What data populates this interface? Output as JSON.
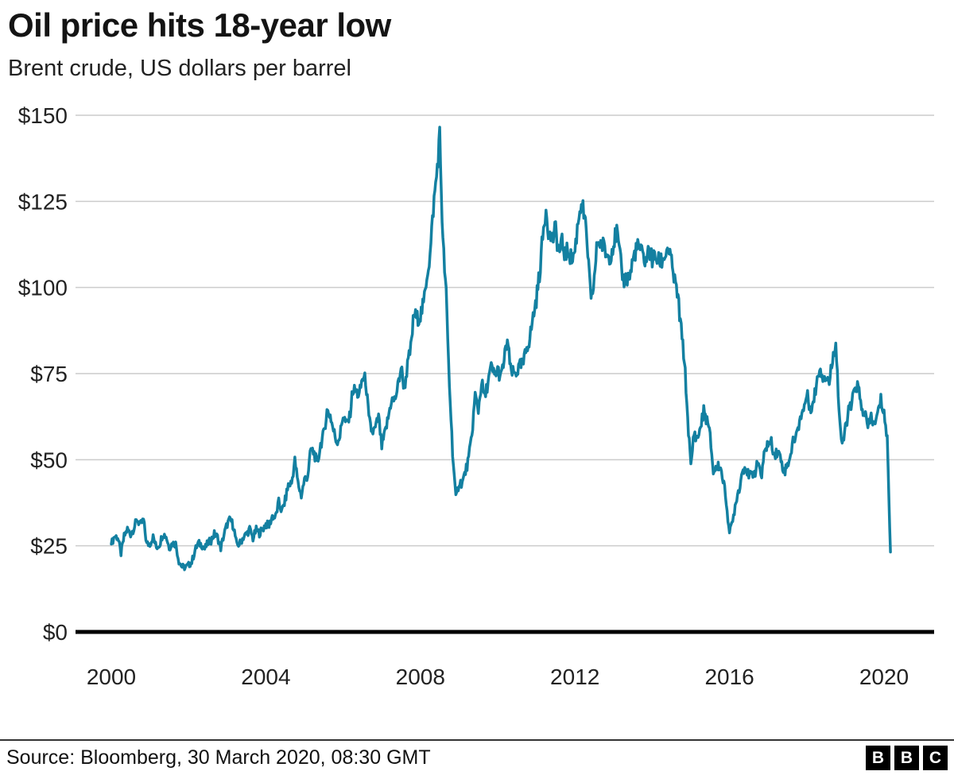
{
  "chart_data": {
    "type": "line",
    "title": "Oil price hits 18-year low",
    "subtitle": "Brent crude, US dollars per barrel",
    "line_color": "#1380A1",
    "grid": true,
    "legend_position": "none",
    "ylim": [
      0,
      150
    ],
    "xlim": [
      2000,
      2020.25
    ],
    "y_ticks": [
      {
        "value": 0,
        "label": "$0"
      },
      {
        "value": 25,
        "label": "$25"
      },
      {
        "value": 50,
        "label": "$50"
      },
      {
        "value": 75,
        "label": "$75"
      },
      {
        "value": 100,
        "label": "$100"
      },
      {
        "value": 125,
        "label": "$125"
      },
      {
        "value": 150,
        "label": "$150"
      }
    ],
    "x_ticks": [
      {
        "value": 2000,
        "label": "2000"
      },
      {
        "value": 2004,
        "label": "2004"
      },
      {
        "value": 2008,
        "label": "2008"
      },
      {
        "value": 2012,
        "label": "2012"
      },
      {
        "value": 2016,
        "label": "2016"
      },
      {
        "value": 2020,
        "label": "2020"
      }
    ],
    "series": [
      {
        "name": "Brent crude price (US dollars per barrel)",
        "x_start_year": 2000,
        "x_step": "monthly",
        "values": [
          25.5,
          27.8,
          27.5,
          22.8,
          27.7,
          29.8,
          28.4,
          30.1,
          32.7,
          31.0,
          32.5,
          25.5,
          25.6,
          27.5,
          24.5,
          25.5,
          28.5,
          27.8,
          24.5,
          25.7,
          25.6,
          20.5,
          18.9,
          18.7,
          19.4,
          20.3,
          23.7,
          25.7,
          25.4,
          24.1,
          25.8,
          26.6,
          28.4,
          27.5,
          24.3,
          28.3,
          31.3,
          32.7,
          30.5,
          25.0,
          25.8,
          27.5,
          28.4,
          29.8,
          27.1,
          29.6,
          28.7,
          29.8,
          31.3,
          30.8,
          33.6,
          33.3,
          37.6,
          35.0,
          38.2,
          42.7,
          43.2,
          49.7,
          43.1,
          39.6,
          44.2,
          45.4,
          53.1,
          51.9,
          48.6,
          54.4,
          57.5,
          64.1,
          62.9,
          58.5,
          55.2,
          56.9,
          63.1,
          60.2,
          62.1,
          70.3,
          69.8,
          68.6,
          73.7,
          73.2,
          61.7,
          57.8,
          58.9,
          62.3,
          53.7,
          57.6,
          62.1,
          67.5,
          67.2,
          71.1,
          77.0,
          70.8,
          77.2,
          82.3,
          92.4,
          91.0,
          92.0,
          95.0,
          103.7,
          109.1,
          122.8,
          132.3,
          144.0,
          113.0,
          98.1,
          71.9,
          52.5,
          38.5,
          43.4,
          43.3,
          46.5,
          50.2,
          57.3,
          68.6,
          64.4,
          72.5,
          67.7,
          72.8,
          76.7,
          74.5,
          76.2,
          73.8,
          78.8,
          84.8,
          75.9,
          74.8,
          75.6,
          77.1,
          77.8,
          82.7,
          85.3,
          91.4,
          96.5,
          104.0,
          114.6,
          123.3,
          115.0,
          114.0,
          116.8,
          110.2,
          112.8,
          109.5,
          110.8,
          107.9,
          110.7,
          119.3,
          125.5,
          119.8,
          110.3,
          95.2,
          102.6,
          113.4,
          112.9,
          111.7,
          109.1,
          109.5,
          112.9,
          116.1,
          108.5,
          102.3,
          102.6,
          102.9,
          107.9,
          111.3,
          111.6,
          109.1,
          107.8,
          110.8,
          108.1,
          108.9,
          107.5,
          107.8,
          109.5,
          111.8,
          106.8,
          101.6,
          97.1,
          87.4,
          79.0,
          62.3,
          47.8,
          58.1,
          55.9,
          59.5,
          64.1,
          61.5,
          56.6,
          46.5,
          47.6,
          48.4,
          44.3,
          38.0,
          28.5,
          32.2,
          38.2,
          41.6,
          46.7,
          48.3,
          44.9,
          45.8,
          46.6,
          49.5,
          44.7,
          53.3,
          54.6,
          54.9,
          51.6,
          52.3,
          50.3,
          46.4,
          48.5,
          51.7,
          56.2,
          57.5,
          62.7,
          64.4,
          69.1,
          65.3,
          66.0,
          72.1,
          76.9,
          74.4,
          74.2,
          72.5,
          78.9,
          84.9,
          64.7,
          53.2,
          59.4,
          64.0,
          66.1,
          71.2,
          71.3,
          64.2,
          63.9,
          59.0,
          62.8,
          59.7,
          63.2,
          67.3,
          63.7,
          55.7,
          23.2
        ]
      }
    ]
  },
  "footer": {
    "source": "Source: Bloomberg, 30 March 2020, 08:30 GMT",
    "logo_letters": [
      "B",
      "B",
      "C"
    ]
  }
}
